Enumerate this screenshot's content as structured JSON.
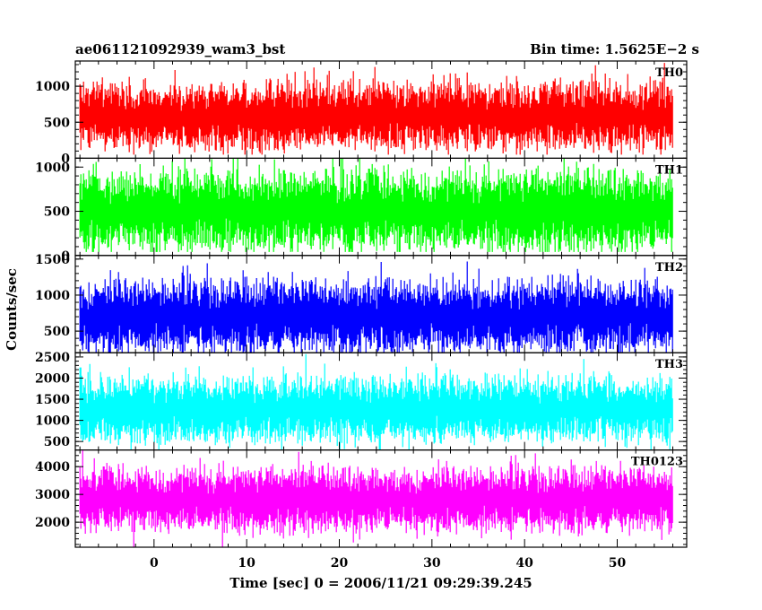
{
  "header": {
    "left_title": "ae061121092939_wam3_bst",
    "right_title": "Bin time: 1.5625E−2 s"
  },
  "chart_data": {
    "type": "line",
    "title": "ae061121092939_wam3_bst",
    "subtitle": "Bin time: 1.5625E−2 s",
    "xlabel": "Time [sec] 0 = 2006/11/21 09:29:39.245",
    "ylabel": "Counts/sec",
    "xlim": [
      -8.5,
      57.5
    ],
    "data_x_range": [
      -8,
      56
    ],
    "bin_time": 0.015625,
    "x_ticks": [
      0,
      10,
      20,
      30,
      40,
      50
    ],
    "grid": false,
    "legend": "none",
    "panels": [
      {
        "name": "TH0",
        "color": "#ff0000",
        "ylim": [
          0,
          1350
        ],
        "y_ticks": [
          0,
          500,
          1000
        ],
        "baseline": 580,
        "spread": 380,
        "low": 50,
        "high": 1350
      },
      {
        "name": "TH1",
        "color": "#00ff00",
        "ylim": [
          0,
          1100
        ],
        "y_ticks": [
          0,
          500,
          1000
        ],
        "baseline": 500,
        "spread": 380,
        "low": 40,
        "high": 1100
      },
      {
        "name": "TH2",
        "color": "#0000ff",
        "ylim": [
          200,
          1550
        ],
        "y_ticks": [
          500,
          1000,
          1500
        ],
        "baseline": 700,
        "spread": 420,
        "low": 200,
        "high": 1550
      },
      {
        "name": "TH3",
        "color": "#00ffff",
        "ylim": [
          300,
          2600
        ],
        "y_ticks": [
          500,
          1000,
          1500,
          2000,
          2500
        ],
        "baseline": 1250,
        "spread": 650,
        "low": 300,
        "high": 2600
      },
      {
        "name": "TH0123",
        "color": "#ff00ff",
        "ylim": [
          1100,
          4600
        ],
        "y_ticks": [
          2000,
          3000,
          4000
        ],
        "baseline": 2800,
        "spread": 950,
        "low": 1100,
        "high": 4600
      }
    ]
  }
}
